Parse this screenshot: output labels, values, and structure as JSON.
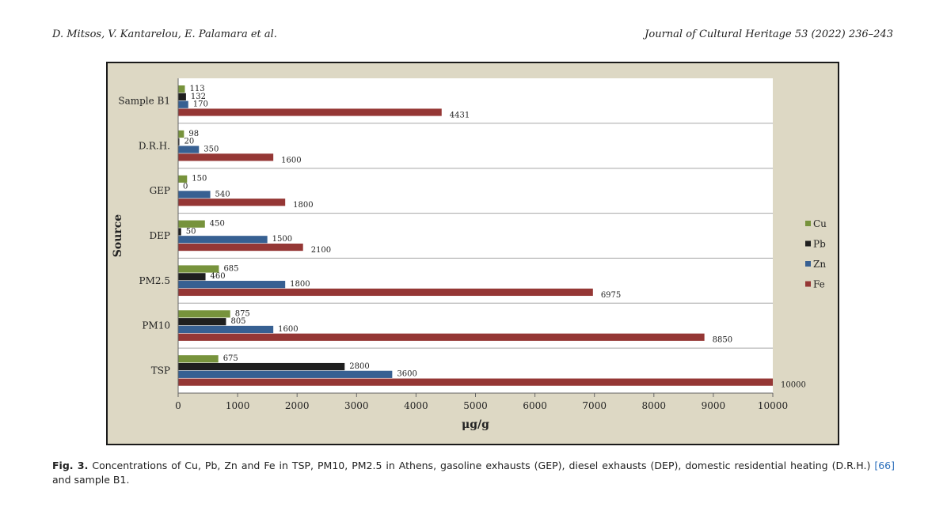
{
  "header": {
    "authors": "D. Mitsos, V. Kantarelou, E. Palamara et al.",
    "journal": "Journal of Cultural Heritage 53 (2022) 236–243"
  },
  "caption": {
    "label": "Fig. 3.",
    "text_before": " Concentrations of Cu, Pb, Zn and Fe in TSP, PM10, PM2.5 in Athens, gasoline exhausts (GEP), diesel exhausts (DEP), domestic residential heating (D.R.H.) ",
    "ref": "[66]",
    "text_after": " and sample B1."
  },
  "chart_data": {
    "type": "bar",
    "orientation": "horizontal",
    "categories": [
      "Sample B1",
      "D.R.H.",
      "GEP",
      "DEP",
      "PM2.5",
      "PM10",
      "TSP"
    ],
    "series": [
      {
        "name": "Cu",
        "color": "#77933c",
        "values": [
          113,
          98,
          150,
          450,
          685,
          875,
          675
        ]
      },
      {
        "name": "Pb",
        "color": "#1f1f1f",
        "values": [
          132,
          20,
          0,
          50,
          460,
          805,
          2800
        ]
      },
      {
        "name": "Zn",
        "color": "#376092",
        "values": [
          170,
          350,
          540,
          1500,
          1800,
          1600,
          3600
        ]
      },
      {
        "name": "Fe",
        "color": "#953735",
        "values": [
          4431,
          1600,
          1800,
          2100,
          6975,
          8850,
          10000
        ]
      }
    ],
    "xlabel": "μg/g",
    "ylabel": "Source",
    "xlim": [
      0,
      10000
    ],
    "xticks": [
      0,
      1000,
      2000,
      3000,
      4000,
      5000,
      6000,
      7000,
      8000,
      9000,
      10000
    ],
    "legend": "right",
    "grid": "horizontal category separators"
  }
}
